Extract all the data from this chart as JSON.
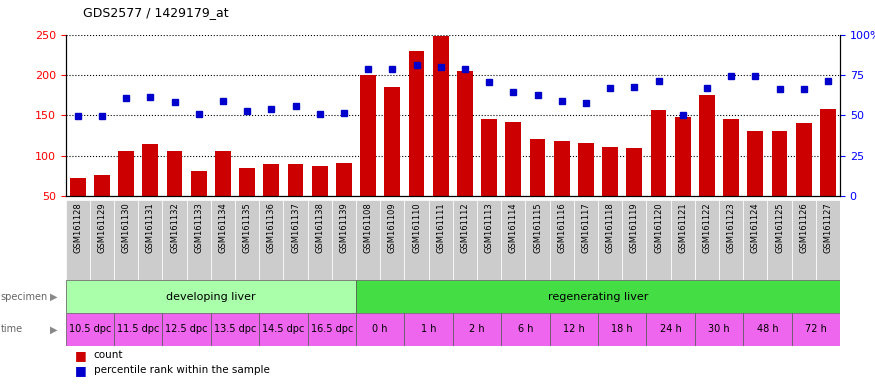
{
  "title": "GDS2577 / 1429179_at",
  "samples": [
    "GSM161128",
    "GSM161129",
    "GSM161130",
    "GSM161131",
    "GSM161132",
    "GSM161133",
    "GSM161134",
    "GSM161135",
    "GSM161136",
    "GSM161137",
    "GSM161138",
    "GSM161139",
    "GSM161108",
    "GSM161109",
    "GSM161110",
    "GSM161111",
    "GSM161112",
    "GSM161113",
    "GSM161114",
    "GSM161115",
    "GSM161116",
    "GSM161117",
    "GSM161118",
    "GSM161119",
    "GSM161120",
    "GSM161121",
    "GSM161122",
    "GSM161123",
    "GSM161124",
    "GSM161125",
    "GSM161126",
    "GSM161127"
  ],
  "counts": [
    72,
    76,
    106,
    114,
    106,
    81,
    106,
    84,
    90,
    90,
    87,
    91,
    200,
    185,
    230,
    248,
    205,
    145,
    142,
    120,
    118,
    115,
    110,
    109,
    157,
    148,
    175,
    145,
    130,
    130,
    140,
    158
  ],
  "percentiles_left_axis": [
    149,
    149,
    171,
    173,
    166,
    152,
    167,
    155,
    158,
    162,
    152,
    153,
    207,
    207,
    212,
    210,
    207,
    191,
    179,
    175,
    167,
    165,
    184,
    185,
    193,
    150,
    184,
    198,
    199,
    183,
    183,
    193
  ],
  "ylim_left": [
    50,
    250
  ],
  "ylim_right": [
    0,
    100
  ],
  "yticks_left": [
    50,
    100,
    150,
    200,
    250
  ],
  "yticks_right": [
    0,
    25,
    50,
    75,
    100
  ],
  "ytick_labels_right": [
    "0",
    "25",
    "50",
    "75",
    "100%"
  ],
  "bar_color": "#CC0000",
  "marker_color": "#0000CC",
  "bg_color": "#ffffff",
  "xticklabel_bg": "#cccccc",
  "specimen_groups": [
    {
      "label": "developing liver",
      "start": 0,
      "end": 12,
      "color": "#aaffaa"
    },
    {
      "label": "regenerating liver",
      "start": 12,
      "end": 32,
      "color": "#44dd44"
    }
  ],
  "time_groups": [
    {
      "label": "10.5 dpc",
      "start": 0,
      "end": 2
    },
    {
      "label": "11.5 dpc",
      "start": 2,
      "end": 4
    },
    {
      "label": "12.5 dpc",
      "start": 4,
      "end": 6
    },
    {
      "label": "13.5 dpc",
      "start": 6,
      "end": 8
    },
    {
      "label": "14.5 dpc",
      "start": 8,
      "end": 10
    },
    {
      "label": "16.5 dpc",
      "start": 10,
      "end": 12
    },
    {
      "label": "0 h",
      "start": 12,
      "end": 14
    },
    {
      "label": "1 h",
      "start": 14,
      "end": 16
    },
    {
      "label": "2 h",
      "start": 16,
      "end": 18
    },
    {
      "label": "6 h",
      "start": 18,
      "end": 20
    },
    {
      "label": "12 h",
      "start": 20,
      "end": 22
    },
    {
      "label": "18 h",
      "start": 22,
      "end": 24
    },
    {
      "label": "24 h",
      "start": 24,
      "end": 26
    },
    {
      "label": "30 h",
      "start": 26,
      "end": 28
    },
    {
      "label": "48 h",
      "start": 28,
      "end": 30
    },
    {
      "label": "72 h",
      "start": 30,
      "end": 32
    }
  ],
  "time_color_dpc": "#ee44ee",
  "time_color_h": "#ee44ee",
  "specimen_label": "specimen",
  "time_label": "time",
  "legend": [
    {
      "label": "count",
      "color": "#CC0000"
    },
    {
      "label": "percentile rank within the sample",
      "color": "#0000CC"
    }
  ]
}
